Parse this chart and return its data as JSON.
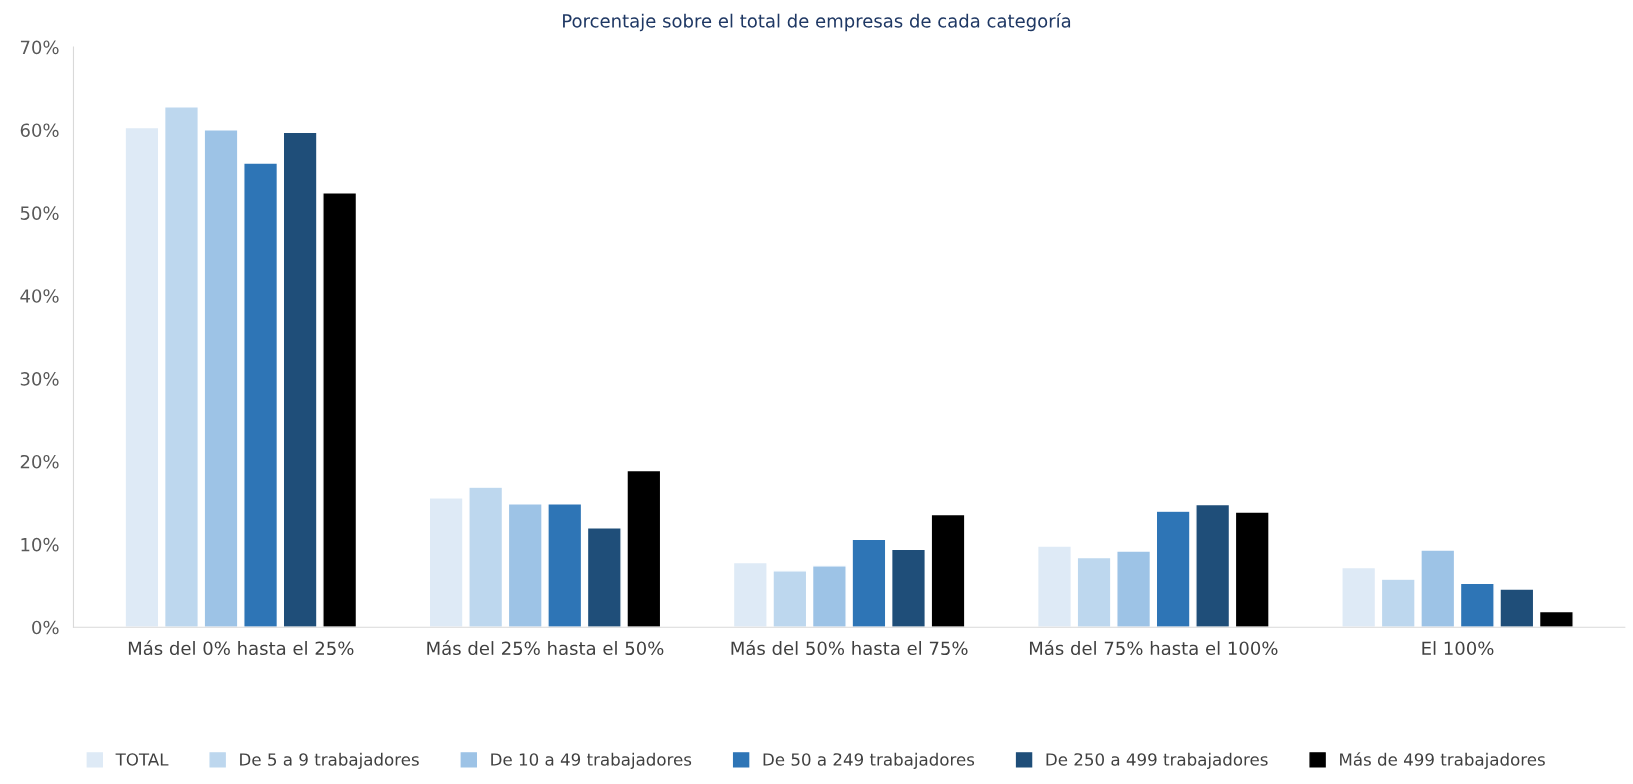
{
  "chart_data": {
    "type": "bar",
    "title": "Porcentaje sobre el total de empresas de cada categoría",
    "categories": [
      "Más del 0% hasta el 25%",
      "Más del 25% hasta el 50%",
      "Más del 50% hasta el 75%",
      "Más del 75% hasta el 100%",
      "El 100%"
    ],
    "series": [
      {
        "name": "TOTAL",
        "color": "#deeaf6",
        "values": [
          60.3,
          15.6,
          7.8,
          9.8,
          7.2
        ]
      },
      {
        "name": "De 5 a 9 trabajadores",
        "color": "#bdd7ee",
        "values": [
          62.8,
          16.9,
          6.8,
          8.4,
          5.8
        ]
      },
      {
        "name": "De 10 a 49 trabajadores",
        "color": "#9dc3e6",
        "values": [
          60.0,
          14.9,
          7.4,
          9.2,
          9.3
        ]
      },
      {
        "name": "De 50 a 249 trabajadores",
        "color": "#2e75b6",
        "values": [
          56.0,
          14.9,
          10.6,
          14.0,
          5.3
        ]
      },
      {
        "name": "De 250 a 499 trabajadores",
        "color": "#1f4e79",
        "values": [
          59.7,
          12.0,
          9.4,
          14.8,
          4.6
        ]
      },
      {
        "name": "Más de 499 trabajadores",
        "color": "#000000",
        "values": [
          52.4,
          18.9,
          13.6,
          13.9,
          1.9
        ]
      }
    ],
    "ylim": [
      0,
      70
    ],
    "yticks": [
      {
        "value": 0,
        "label": "0%"
      },
      {
        "value": 10,
        "label": "10%"
      },
      {
        "value": 20,
        "label": "20%"
      },
      {
        "value": 30,
        "label": "30%"
      },
      {
        "value": 40,
        "label": "40%"
      },
      {
        "value": 50,
        "label": "50%"
      },
      {
        "value": 60,
        "label": "60%"
      },
      {
        "value": 70,
        "label": "70%"
      }
    ],
    "grid": false,
    "legend": "bottom"
  }
}
